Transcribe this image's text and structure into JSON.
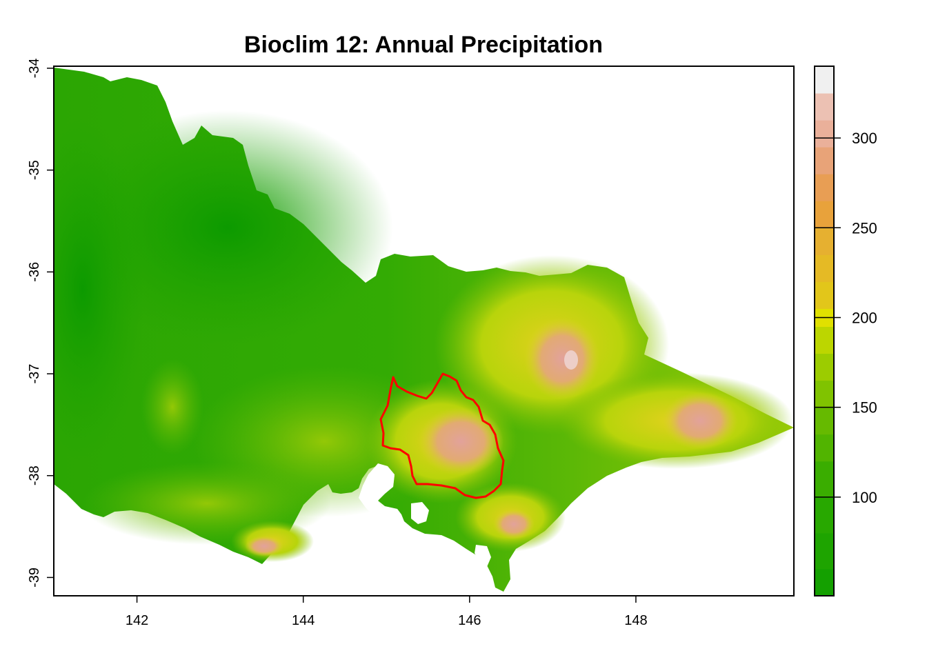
{
  "title": "Bioclim 12: Annual Precipitation",
  "colors": {
    "outline": "#ff0000",
    "sea": "#ffffff",
    "frame": "#000000"
  },
  "map": {
    "x_axis": {
      "range": [
        141.0,
        149.9
      ],
      "ticks": [
        142,
        144,
        146,
        148
      ],
      "tick_labels": [
        "142",
        "144",
        "146",
        "148"
      ]
    },
    "y_axis": {
      "range": [
        -39.18,
        -33.98
      ],
      "ticks": [
        -34,
        -35,
        -36,
        -37,
        -38,
        -39
      ],
      "tick_labels": [
        "-34",
        "-35",
        "-36",
        "-37",
        "-38",
        "-39"
      ],
      "label_rotation": "vertical"
    },
    "outline": {
      "color": "#ff0000",
      "description_visible": false
    }
  },
  "legend": {
    "type": "colorbar",
    "range": [
      45,
      340
    ],
    "ticks": [
      100,
      150,
      200,
      250,
      300
    ],
    "tick_labels": [
      "100",
      "150",
      "200",
      "250",
      "300"
    ],
    "bins": [
      {
        "from": 45,
        "to": 60,
        "color": "#14a000"
      },
      {
        "from": 60,
        "to": 80,
        "color": "#1ea400"
      },
      {
        "from": 80,
        "to": 100,
        "color": "#28a800"
      },
      {
        "from": 100,
        "to": 120,
        "color": "#3aad00"
      },
      {
        "from": 120,
        "to": 135,
        "color": "#51b400"
      },
      {
        "from": 135,
        "to": 150,
        "color": "#66ba00"
      },
      {
        "from": 150,
        "to": 165,
        "color": "#80c300"
      },
      {
        "from": 165,
        "to": 180,
        "color": "#9ccc00"
      },
      {
        "from": 180,
        "to": 195,
        "color": "#bcd600"
      },
      {
        "from": 195,
        "to": 205,
        "color": "#e0e000"
      },
      {
        "from": 205,
        "to": 220,
        "color": "#e2c61a"
      },
      {
        "from": 220,
        "to": 235,
        "color": "#e5ba25"
      },
      {
        "from": 235,
        "to": 250,
        "color": "#e6b030"
      },
      {
        "from": 250,
        "to": 265,
        "color": "#e8a23b"
      },
      {
        "from": 265,
        "to": 280,
        "color": "#e89e54"
      },
      {
        "from": 280,
        "to": 295,
        "color": "#e8a378"
      },
      {
        "from": 295,
        "to": 310,
        "color": "#eab09a"
      },
      {
        "from": 310,
        "to": 325,
        "color": "#ecc1b3"
      },
      {
        "from": 325,
        "to": 340,
        "color": "#f0f0f0"
      }
    ]
  }
}
